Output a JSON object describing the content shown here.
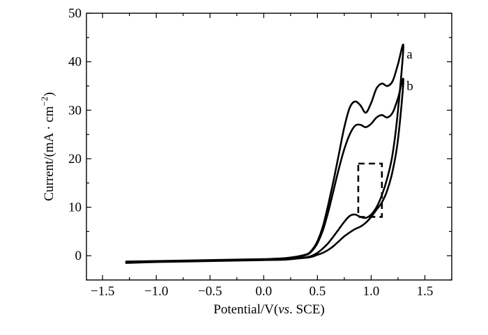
{
  "chart_data": {
    "type": "line",
    "title": "",
    "xlabel_parts": [
      "Potential/V(",
      "vs",
      ". SCE)"
    ],
    "ylabel_parts": [
      "Current/(mA · cm",
      "−2",
      ")"
    ],
    "xlim": [
      -1.65,
      1.75
    ],
    "ylim": [
      -5,
      50
    ],
    "xticks": [
      -1.5,
      -1.0,
      -0.5,
      0.0,
      0.5,
      1.0,
      1.5
    ],
    "xtick_labels": [
      "−1.5",
      "−1.0",
      "−0.5",
      "0.0",
      "0.5",
      "1.0",
      "1.5"
    ],
    "yticks": [
      0,
      10,
      20,
      30,
      40,
      50
    ],
    "ytick_labels": [
      "0",
      "10",
      "20",
      "30",
      "40",
      "50"
    ],
    "grid": false,
    "series": [
      {
        "name": "a",
        "x": [
          -1.28,
          -1.0,
          -0.5,
          0.0,
          0.2,
          0.3,
          0.4,
          0.45,
          0.5,
          0.55,
          0.6,
          0.65,
          0.7,
          0.75,
          0.8,
          0.85,
          0.9,
          0.95,
          1.0,
          1.05,
          1.1,
          1.15,
          1.2,
          1.25,
          1.3,
          1.25,
          1.2,
          1.15,
          1.1,
          1.05,
          1.0,
          0.95,
          0.9,
          0.85,
          0.8,
          0.75,
          0.7,
          0.65,
          0.6,
          0.55,
          0.5,
          0.45,
          0.4,
          0.3,
          0.2,
          0.0,
          -0.5,
          -1.0,
          -1.28
        ],
        "y": [
          -1.2,
          -1.1,
          -0.9,
          -0.7,
          -0.5,
          -0.2,
          0.3,
          1.2,
          3.0,
          6.0,
          10.5,
          15.5,
          21.0,
          26.5,
          30.5,
          31.8,
          31.0,
          29.5,
          31.5,
          34.5,
          35.5,
          35.0,
          36.0,
          39.5,
          43.2,
          30.0,
          21.0,
          16.0,
          12.5,
          10.0,
          8.5,
          7.8,
          8.0,
          8.5,
          8.2,
          7.0,
          5.5,
          4.0,
          2.6,
          1.5,
          0.6,
          0.0,
          -0.3,
          -0.5,
          -0.7,
          -0.8,
          -1.0,
          -1.2,
          -1.3
        ]
      },
      {
        "name": "b",
        "x": [
          -1.28,
          -1.0,
          -0.5,
          0.0,
          0.2,
          0.3,
          0.4,
          0.45,
          0.5,
          0.55,
          0.6,
          0.65,
          0.7,
          0.75,
          0.8,
          0.85,
          0.9,
          0.95,
          1.0,
          1.05,
          1.1,
          1.15,
          1.2,
          1.25,
          1.3,
          1.25,
          1.2,
          1.15,
          1.1,
          1.05,
          1.0,
          0.95,
          0.9,
          0.85,
          0.8,
          0.75,
          0.7,
          0.65,
          0.6,
          0.55,
          0.5,
          0.45,
          0.4,
          0.3,
          0.2,
          0.0,
          -0.5,
          -1.0,
          -1.28
        ],
        "y": [
          -1.4,
          -1.2,
          -1.0,
          -0.8,
          -0.6,
          -0.3,
          0.2,
          1.0,
          2.6,
          5.2,
          9.0,
          13.5,
          18.0,
          22.0,
          25.0,
          26.8,
          27.0,
          26.5,
          27.2,
          28.5,
          29.0,
          28.5,
          29.5,
          32.5,
          36.2,
          24.0,
          17.5,
          13.5,
          11.0,
          9.5,
          8.0,
          6.8,
          6.0,
          5.5,
          4.8,
          4.0,
          3.0,
          2.0,
          1.2,
          0.6,
          0.2,
          -0.2,
          -0.4,
          -0.6,
          -0.8,
          -0.9,
          -1.1,
          -1.3,
          -1.5
        ]
      }
    ],
    "annotation_box": {
      "x": [
        0.88,
        1.1
      ],
      "y": [
        8,
        19
      ]
    },
    "curve_labels": [
      {
        "text": "a",
        "x": 1.33,
        "y": 41.5
      },
      {
        "text": "b",
        "x": 1.33,
        "y": 35.0
      }
    ]
  }
}
